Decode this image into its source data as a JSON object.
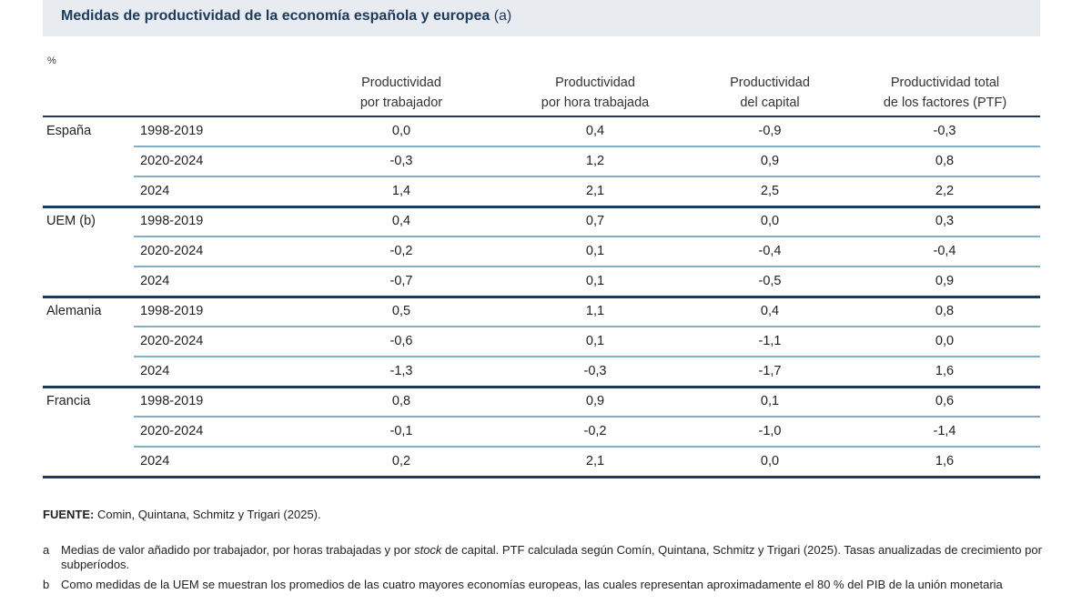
{
  "title": {
    "main": "Medidas de productividad de la economía española y europea",
    "suffix": "(a)"
  },
  "unit": "%",
  "columns": [
    {
      "line1": "Productividad",
      "line2": "por trabajador"
    },
    {
      "line1": "Productividad",
      "line2": "por hora trabajada"
    },
    {
      "line1": "Productividad",
      "line2": "del capital"
    },
    {
      "line1": "Productividad total",
      "line2": "de los factores (PTF)"
    }
  ],
  "groups": [
    {
      "country": "España",
      "rows": [
        {
          "period": "1998-2019",
          "values": [
            "0,0",
            "0,4",
            "-0,9",
            "-0,3"
          ]
        },
        {
          "period": "2020-2024",
          "values": [
            "-0,3",
            "1,2",
            "0,9",
            "0,8"
          ]
        },
        {
          "period": "2024",
          "values": [
            "1,4",
            "2,1",
            "2,5",
            "2,2"
          ]
        }
      ]
    },
    {
      "country": "UEM (b)",
      "rows": [
        {
          "period": "1998-2019",
          "values": [
            "0,4",
            "0,7",
            "0,0",
            "0,3"
          ]
        },
        {
          "period": "2020-2024",
          "values": [
            "-0,2",
            "0,1",
            "-0,4",
            "-0,4"
          ]
        },
        {
          "period": "2024",
          "values": [
            "-0,7",
            "0,1",
            "-0,5",
            "0,9"
          ]
        }
      ]
    },
    {
      "country": "Alemania",
      "rows": [
        {
          "period": "1998-2019",
          "values": [
            "0,5",
            "1,1",
            "0,4",
            "0,8"
          ]
        },
        {
          "period": "2020-2024",
          "values": [
            "-0,6",
            "0,1",
            "-1,1",
            "0,0"
          ]
        },
        {
          "period": "2024",
          "values": [
            "-1,3",
            "-0,3",
            "-1,7",
            "1,6"
          ]
        }
      ]
    },
    {
      "country": "Francia",
      "rows": [
        {
          "period": "1998-2019",
          "values": [
            "0,8",
            "0,9",
            "0,1",
            "0,6"
          ]
        },
        {
          "period": "2020-2024",
          "values": [
            "-0,1",
            "-0,2",
            "-1,0",
            "-1,4"
          ]
        },
        {
          "period": "2024",
          "values": [
            "0,2",
            "2,1",
            "0,0",
            "1,6"
          ]
        }
      ]
    }
  ],
  "source": {
    "label": "FUENTE:",
    "text": "Comin, Quintana, Schmitz y Trigari (2025)."
  },
  "notes": [
    {
      "mark": "a",
      "pre": "Medias de valor añadido por trabajador, por horas trabajadas y por ",
      "italic": "stock",
      "post": " de capital. PTF calculada según Comín, Quintana,  Schmitz y Trigari (2025). Tasas anualizadas de crecimiento por subperíodos."
    },
    {
      "mark": "b",
      "pre": "Como medidas de la UEM se muestran los promedios de las cuatro mayores economías europeas, las cuales representan aproximadamente el 80 % del PIB de la unión monetaria",
      "italic": "",
      "post": ""
    }
  ]
}
